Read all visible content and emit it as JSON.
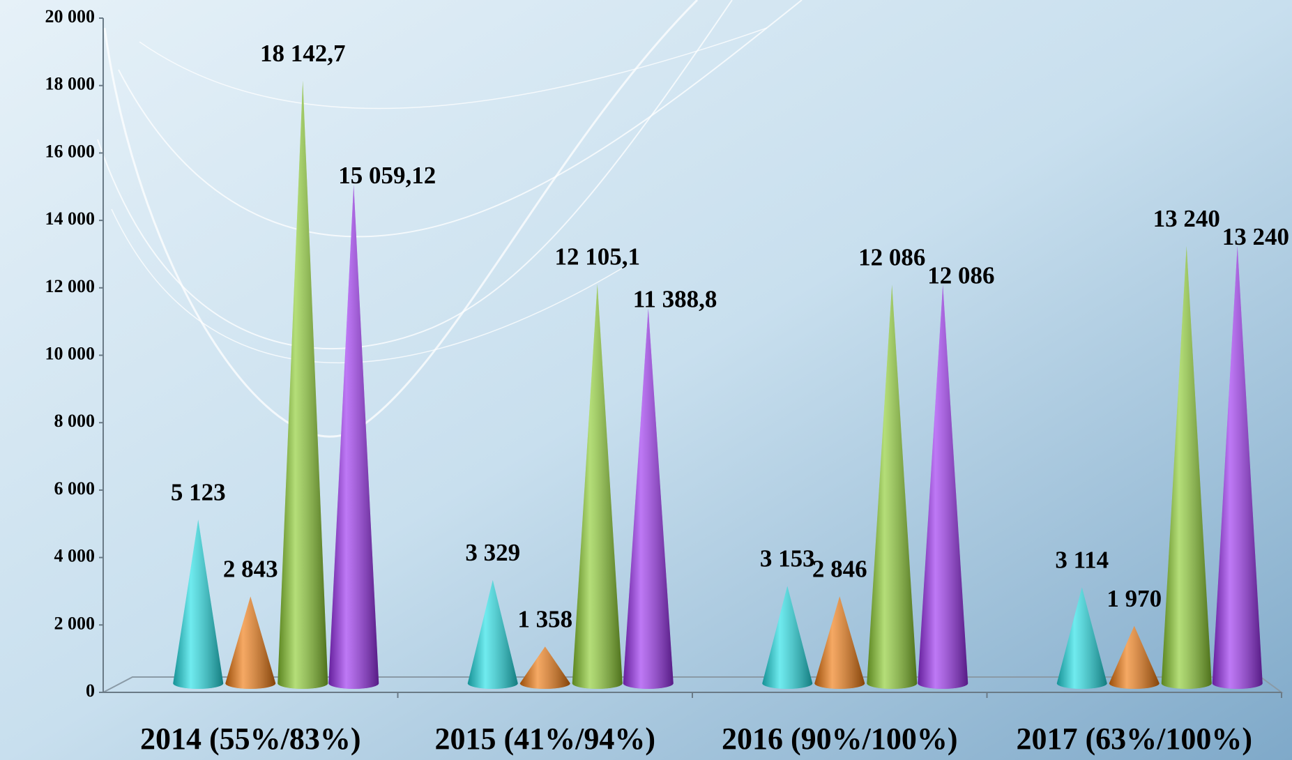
{
  "chart_data": {
    "type": "cone",
    "categories": [
      "2014 (55%/83%)",
      "2015 (41%/94%)",
      "2016 (90%/100%)",
      "2017 (63%/100%)"
    ],
    "series": [
      {
        "color": "#22e0e6",
        "values": [
          5123,
          3329,
          3153,
          3114
        ],
        "value_labels": [
          "5 123",
          "3 329",
          "3 153",
          "3 114"
        ]
      },
      {
        "color": "#f07a10",
        "values": [
          2843,
          1358,
          2846,
          1970
        ],
        "value_labels": [
          "2 843",
          "1 358",
          "2 846",
          "1 970"
        ]
      },
      {
        "color": "#8ccc30",
        "values": [
          18142.7,
          12105.1,
          12086,
          13240
        ],
        "value_labels": [
          "18 142,7",
          "12 105,1",
          "12 086",
          "13 240"
        ]
      },
      {
        "color": "#9b30f0",
        "values": [
          15059.12,
          11388.8,
          12086,
          13240
        ],
        "value_labels": [
          "15 059,12",
          "11 388,8",
          "12 086",
          "13 240"
        ]
      }
    ],
    "ylim": [
      0,
      20000
    ],
    "yticks": [
      0,
      {
        "value": 2000,
        "label": "2 000"
      },
      {
        "value": 4000,
        "label": "4 000"
      },
      {
        "value": 6000,
        "label": "6 000"
      },
      {
        "value": 8000,
        "label": "8 000"
      },
      {
        "value": 10000,
        "label": "10 000"
      },
      {
        "value": 12000,
        "label": "12 000"
      },
      {
        "value": 14000,
        "label": "14 000"
      },
      {
        "value": 16000,
        "label": "16 000"
      },
      {
        "value": 18000,
        "label": "18 000"
      },
      {
        "value": 20000,
        "label": "20 000"
      }
    ]
  }
}
